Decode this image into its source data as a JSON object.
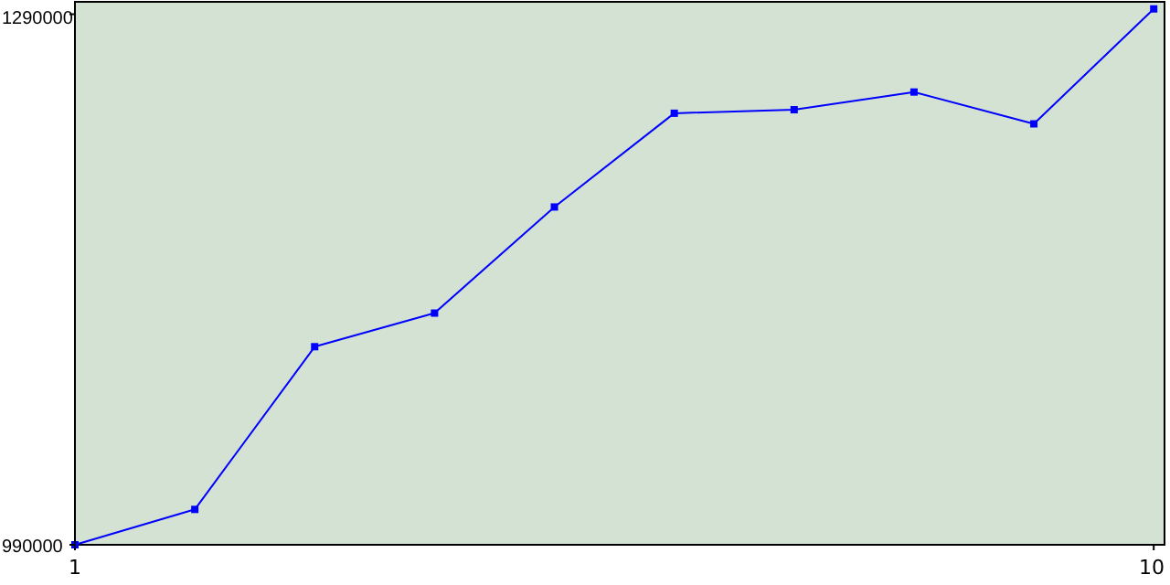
{
  "chart_data": {
    "type": "line",
    "x": [
      1,
      2,
      3,
      4,
      5,
      6,
      7,
      8,
      9,
      10
    ],
    "series": [
      {
        "color": "#0000ff",
        "values": [
          990000,
          1010000,
          1102000,
          1121000,
          1181000,
          1234000,
          1236000,
          1246000,
          1228000,
          1293000
        ]
      }
    ],
    "xlim": [
      1,
      10.09
    ],
    "xticks": [
      1,
      10
    ],
    "ylim": [
      990000,
      1297000
    ],
    "yticks": [
      990000,
      1290000
    ],
    "marker": "square",
    "grid": false
  }
}
